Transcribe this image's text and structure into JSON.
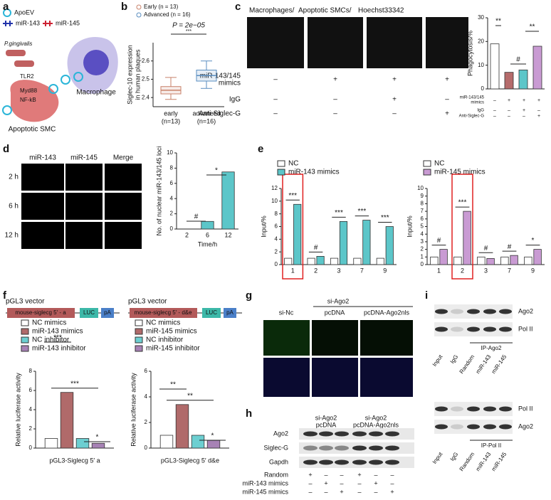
{
  "letters": [
    "a",
    "b",
    "c",
    "d",
    "e",
    "f",
    "g",
    "h",
    "i"
  ],
  "a": {
    "legend": [
      "ApoEV",
      "miR-143",
      "miR-145"
    ],
    "labels": [
      "P.gingivalis",
      "TLR2",
      "Myd88",
      "NF-kB",
      "Macrophage",
      "Apoptotic SMC"
    ]
  },
  "c": {
    "stain": [
      "Macrophages/",
      "Apoptotic SMCs/",
      "Hoechst33342"
    ],
    "rows": [
      {
        "label": [
          "miR-143/145",
          "mimics"
        ],
        "signs": [
          "–",
          "+",
          "+",
          "+"
        ]
      },
      {
        "label": [
          "IgG"
        ],
        "signs": [
          "–",
          "–",
          "+",
          "–"
        ]
      },
      {
        "label": [
          "Anti-Siglec-G"
        ],
        "signs": [
          "–",
          "–",
          "–",
          "+"
        ]
      }
    ],
    "mini_rows": [
      {
        "label": [
          "miR-143/145",
          "mimics"
        ],
        "signs": [
          "–",
          "+",
          "+",
          "+"
        ]
      },
      {
        "label": [
          "IgG"
        ],
        "signs": [
          "–",
          "–",
          "+",
          "–"
        ]
      },
      {
        "label": [
          "Anti-Siglec-G"
        ],
        "signs": [
          "–",
          "–",
          "–",
          "+"
        ]
      }
    ]
  },
  "d": {
    "columns": [
      "miR-143",
      "miR-145",
      "Merge"
    ],
    "rows": [
      "2 h",
      "6 h",
      "12 h"
    ]
  },
  "f": {
    "vectors": [
      {
        "title": "pGL3 vector",
        "insert": "mouse-siglecg 5′ - a",
        "luc": "LUC",
        "pa": "pA"
      },
      {
        "title": "pGL3 vector",
        "insert": "mouse-siglecg 5′ - d&e",
        "luc": "LUC",
        "pa": "pA"
      }
    ]
  },
  "g": {
    "group": "si-Ago2",
    "columns": [
      "si-Nc",
      "pcDNA",
      "pcDNA-Ago2nls"
    ]
  },
  "h": {
    "headers": [
      [
        "si-Ago2",
        "pcDNA"
      ],
      [
        "si-Ago2",
        "pcDNA-Ago2nls"
      ]
    ],
    "bands": [
      "Ago2",
      "Siglec-G",
      "Gapdh"
    ],
    "rows": [
      {
        "label": "Random",
        "signs": [
          "+",
          "–",
          "–",
          "+",
          "–",
          "–"
        ]
      },
      {
        "label": "miR-143 mimics",
        "signs": [
          "–",
          "+",
          "–",
          "–",
          "+",
          "–"
        ]
      },
      {
        "label": "miR-145 mimics",
        "signs": [
          "–",
          "–",
          "+",
          "–",
          "–",
          "+"
        ]
      }
    ]
  },
  "i": {
    "blots": [
      {
        "bands": [
          "Ago2",
          "Pol II"
        ],
        "lanes": [
          "Input",
          "IgG",
          "Random",
          "miR-143",
          "miR-145"
        ],
        "group": "IP-Ago2"
      },
      {
        "bands": [
          "Pol II",
          "Ago2"
        ],
        "lanes": [
          "Input",
          "IgG",
          "Random",
          "miR-143",
          "miR-145"
        ],
        "group": "IP-Pol II"
      }
    ]
  },
  "chart_data": [
    {
      "type": "box",
      "subtitle": "P = 2e−05",
      "annotations": [
        "***"
      ],
      "ylabel": [
        "Siglec-10 expression",
        "in human plaques"
      ],
      "categories": [
        "early",
        "advanced"
      ],
      "category_notes": [
        "(n=13)",
        "(n=16)"
      ],
      "series": [
        {
          "name": "Early (n = 13)",
          "color": "#c8826a"
        },
        {
          "name": "Advanced (n = 16)",
          "color": "#5a8ec0"
        }
      ],
      "stats": [
        {
          "min": 2.39,
          "q1": 2.42,
          "median": 2.44,
          "q3": 2.46,
          "max": 2.51
        },
        {
          "min": 2.45,
          "q1": 2.49,
          "median": 2.52,
          "q3": 2.55,
          "max": 2.6
        }
      ],
      "ylim": [
        2.35,
        2.7
      ],
      "yticks": [
        2.4,
        2.5,
        2.6
      ]
    },
    {
      "type": "bar",
      "ylabel": "Phagocytosis/%",
      "categories": [
        null,
        null,
        null,
        null
      ],
      "values": [
        19,
        7,
        8,
        18
      ],
      "colors": [
        "#ffffff",
        "#b56b6b",
        "#5cc6c9",
        "#c99bd3"
      ],
      "annotations": [
        "**",
        "#",
        "**"
      ],
      "ylim": [
        0,
        30
      ],
      "yticks": [
        0,
        10,
        20,
        30
      ]
    },
    {
      "type": "bar",
      "ylabel": "No. of nuclear miR-143/145 loci",
      "xlabel": "Time/h",
      "categories": [
        2,
        6,
        12
      ],
      "values": [
        0,
        1,
        7.5
      ],
      "colors": [
        "#5cc6c9",
        "#5cc6c9",
        "#5cc6c9"
      ],
      "annotations": [
        "#",
        "*"
      ],
      "ylim": [
        0,
        10
      ],
      "yticks": [
        0,
        2,
        4,
        6,
        8,
        10
      ]
    },
    {
      "type": "bar",
      "ylabel": "Input/%",
      "categories": [
        1,
        2,
        3,
        7,
        9
      ],
      "series": [
        {
          "name": "NC",
          "color": "#ffffff",
          "values": [
            1,
            1,
            1,
            1,
            1
          ]
        },
        {
          "name": "miR-143 mimics",
          "color": "#5cc6c9",
          "values": [
            9.5,
            1.3,
            6.8,
            7,
            6
          ]
        }
      ],
      "annotations": [
        "***",
        "#",
        "***",
        "***",
        "***"
      ],
      "ylim": [
        0,
        12
      ],
      "yticks": [
        0,
        2,
        4,
        6,
        8,
        10,
        12
      ]
    },
    {
      "type": "bar",
      "ylabel": "Input/%",
      "categories": [
        1,
        2,
        3,
        7,
        9
      ],
      "series": [
        {
          "name": "NC",
          "color": "#ffffff",
          "values": [
            1,
            1,
            1,
            1,
            1
          ]
        },
        {
          "name": "miR-145 mimics",
          "color": "#c99bd3",
          "values": [
            2,
            7,
            0.8,
            1.2,
            2
          ]
        }
      ],
      "annotations": [
        "#",
        "***",
        "#",
        "#",
        "*"
      ],
      "ylim": [
        0,
        10
      ],
      "yticks": [
        0,
        1,
        2,
        3,
        4,
        5,
        6,
        7,
        8,
        9,
        10
      ]
    },
    {
      "type": "bar",
      "ylabel": "Relative luciferase activity",
      "categories": [
        "pGL3-Siglecg 5′ a"
      ],
      "series": [
        {
          "name": "NC mimics",
          "color": "#ffffff",
          "values": [
            1
          ]
        },
        {
          "name": "miR-143 mimics",
          "color": "#b06a6a",
          "values": [
            5.8
          ]
        },
        {
          "name": "NC inhibitor",
          "color": "#6ccfd1",
          "values": [
            1
          ]
        },
        {
          "name": "miR-143 inhibitor",
          "color": "#a782b5",
          "values": [
            0.5
          ]
        }
      ],
      "annotations": [
        "***",
        "*"
      ],
      "ylim": [
        0,
        8
      ],
      "yticks": [
        0,
        2,
        4,
        6,
        8
      ]
    },
    {
      "type": "bar",
      "ylabel": "Relative luciferase activity",
      "categories": [
        "pGL3-Siglecg 5′ d&e"
      ],
      "series": [
        {
          "name": "NC mimics",
          "color": "#ffffff",
          "values": [
            1
          ]
        },
        {
          "name": "miR-145 mimics",
          "color": "#b06a6a",
          "values": [
            3.4
          ]
        },
        {
          "name": "NC inhibitor",
          "color": "#6ccfd1",
          "values": [
            1
          ]
        },
        {
          "name": "miR-145 inhibitor",
          "color": "#a782b5",
          "values": [
            0.6
          ]
        }
      ],
      "annotations": [
        "**",
        "*"
      ],
      "ylim": [
        0,
        6
      ],
      "yticks": [
        0,
        2,
        4,
        6
      ]
    }
  ]
}
